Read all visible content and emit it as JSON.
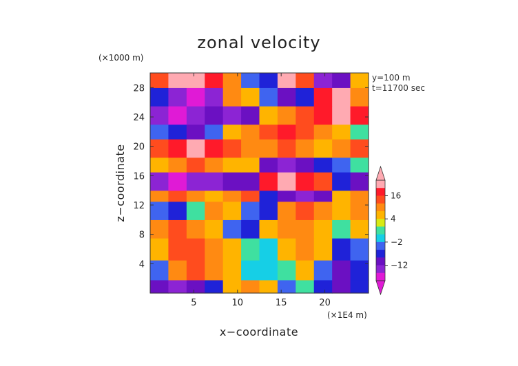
{
  "chart_data": {
    "type": "heatmap",
    "title": "zonal velocity",
    "xlabel": "x−coordinate",
    "ylabel": "z−coordinate",
    "x_unit": "(×1E4 m)",
    "y_unit": "(×1000 m)",
    "x_range": [
      0,
      25
    ],
    "y_range": [
      0,
      30
    ],
    "x_ticks": [
      5,
      10,
      15,
      20
    ],
    "y_ticks": [
      4,
      8,
      12,
      16,
      20,
      24,
      28
    ],
    "x_tick_labels": [
      "5",
      "10",
      "15",
      "20"
    ],
    "y_tick_labels": [
      "4",
      "8",
      "12",
      "16",
      "20",
      "24",
      "28"
    ],
    "annotations": [
      "y=100 m",
      "t=11700 sec"
    ],
    "colorbar": {
      "tick_labels": [
        "16",
        "4",
        "−2",
        "−12"
      ],
      "tick_values": [
        16,
        4,
        -2,
        -12
      ],
      "levels": [
        -20,
        -16,
        -12,
        -8,
        -4,
        -2,
        0,
        2,
        4,
        8,
        12,
        16,
        20
      ],
      "colors": [
        "#e01ad6",
        "#8c24d4",
        "#6b10c2",
        "#1f22d8",
        "#3f64f0",
        "#16cfe6",
        "#3fe0a0",
        "#d8ea14",
        "#ffb400",
        "#ff8a12",
        "#ff4c1e",
        "#ff1a2a",
        "#ffaab2"
      ]
    },
    "bands": [
      {
        "z0": 0.0,
        "z1": 1.8,
        "values": [
          -12,
          -16,
          -12,
          -8,
          4,
          8,
          4,
          -4,
          0,
          -8,
          -12,
          -8
        ]
      },
      {
        "z0": 1.8,
        "z1": 4.5,
        "values": [
          -4,
          8,
          12,
          8,
          4,
          -2,
          -2,
          0,
          4,
          -4,
          -12,
          -8
        ]
      },
      {
        "z0": 4.5,
        "z1": 7.5,
        "values": [
          4,
          12,
          12,
          8,
          4,
          0,
          -2,
          4,
          8,
          4,
          -8,
          -4
        ]
      },
      {
        "z0": 7.5,
        "z1": 10.0,
        "values": [
          8,
          12,
          8,
          4,
          -4,
          -8,
          4,
          8,
          8,
          4,
          0,
          4
        ]
      },
      {
        "z0": 10.0,
        "z1": 12.5,
        "values": [
          -4,
          -8,
          0,
          8,
          4,
          -4,
          -8,
          8,
          12,
          8,
          4,
          8
        ]
      },
      {
        "z0": 12.5,
        "z1": 14.0,
        "values": [
          8,
          12,
          8,
          4,
          8,
          12,
          -8,
          -12,
          -16,
          -12,
          4,
          8
        ]
      },
      {
        "z0": 14.0,
        "z1": 16.5,
        "values": [
          -16,
          -20,
          -16,
          -16,
          -12,
          -12,
          16,
          20,
          16,
          12,
          -8,
          -12
        ]
      },
      {
        "z0": 16.5,
        "z1": 18.5,
        "values": [
          4,
          8,
          12,
          8,
          4,
          4,
          -12,
          -16,
          -12,
          -8,
          -4,
          0
        ]
      },
      {
        "z0": 18.5,
        "z1": 21.0,
        "values": [
          12,
          16,
          20,
          16,
          12,
          8,
          8,
          12,
          8,
          4,
          8,
          12
        ]
      },
      {
        "z0": 21.0,
        "z1": 23.0,
        "values": [
          -4,
          -8,
          -12,
          -4,
          4,
          8,
          12,
          16,
          12,
          8,
          4,
          0
        ]
      },
      {
        "z0": 23.0,
        "z1": 25.5,
        "values": [
          -16,
          -20,
          -16,
          -12,
          -16,
          -12,
          4,
          8,
          12,
          16,
          20,
          16
        ]
      },
      {
        "z0": 25.5,
        "z1": 28.0,
        "values": [
          -8,
          -16,
          -20,
          -16,
          8,
          4,
          -4,
          -12,
          -8,
          16,
          20,
          8
        ]
      },
      {
        "z0": 28.0,
        "z1": 30.0,
        "values": [
          12,
          20,
          20,
          16,
          8,
          -4,
          -8,
          20,
          12,
          -16,
          -12,
          4
        ]
      }
    ]
  }
}
